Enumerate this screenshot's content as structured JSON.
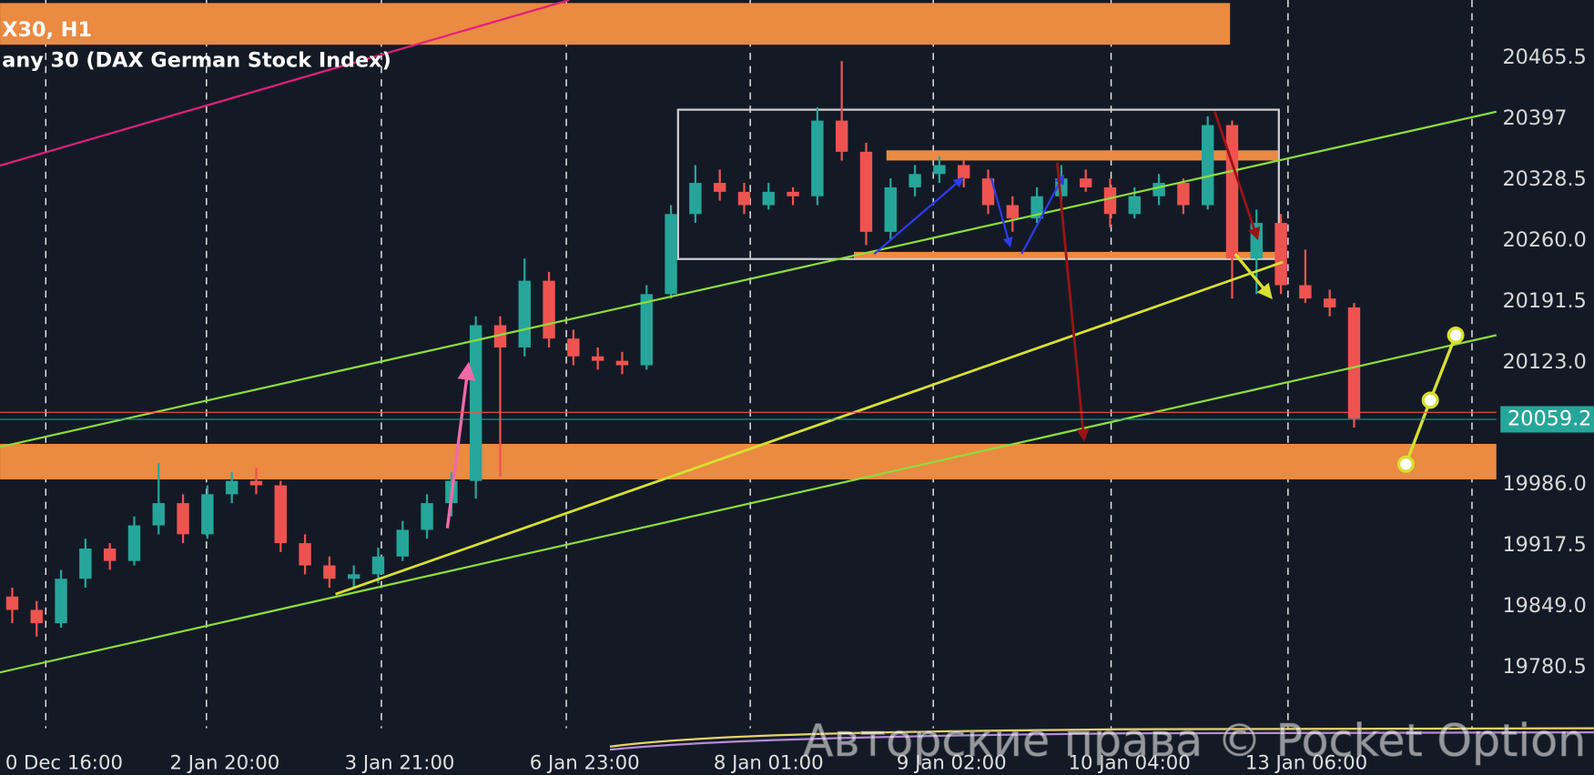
{
  "header": {
    "symbol": "X30, H1",
    "name": "any 30 (DAX German Stock Index)"
  },
  "watermark": "Авторские права © Pocket Option",
  "chart_data": {
    "type": "candlestick",
    "up_color": "#26a69a",
    "down_color": "#ef5350",
    "ylim": [
      19711.9,
      20530.6
    ],
    "yticks": [
      20465.5,
      20397.0,
      20328.5,
      {
        "value": 20260,
        "label": "20260.0"
      },
      20191.5,
      {
        "value": 20123,
        "label": "20123.0"
      },
      {
        "value": 19986,
        "label": "19986.0"
      },
      19917.5,
      {
        "value": 19849,
        "label": "19849.0"
      },
      19780.5
    ],
    "xlim": [
      -0.5,
      64.83
    ],
    "xticks": [
      {
        "value": 1.375,
        "label": "0 Dec 16:00"
      },
      {
        "value": 7.96,
        "label": "2 Jan 20:00"
      },
      {
        "value": 15.13,
        "label": "3 Jan 21:00"
      },
      {
        "value": 22.71,
        "label": "6 Jan 23:00"
      },
      {
        "value": 30.25,
        "label": "8 Jan 01:00"
      },
      {
        "value": 37.75,
        "label": "9 Jan 02:00"
      },
      {
        "value": 45.04,
        "label": "10 Jan 04:00"
      },
      {
        "value": 52.29,
        "label": "13 Jan 06:00"
      }
    ],
    "last_price": 20059.2,
    "ohlc": [
      [
        19860,
        19870,
        19830,
        19845
      ],
      [
        19845,
        19855,
        19815,
        19830
      ],
      [
        19830,
        19890,
        19825,
        19880
      ],
      [
        19880,
        19925,
        19870,
        19914
      ],
      [
        19914,
        19920,
        19890,
        19900
      ],
      [
        19900,
        19950,
        19895,
        19940
      ],
      [
        19940,
        20010,
        19930,
        19965
      ],
      [
        19965,
        19975,
        19920,
        19930
      ],
      [
        19930,
        19985,
        19925,
        19975
      ],
      [
        19975,
        20000,
        19965,
        19990
      ],
      [
        19990,
        20005,
        19975,
        19985
      ],
      [
        19985,
        19990,
        19910,
        19920
      ],
      [
        19920,
        19930,
        19885,
        19895
      ],
      [
        19895,
        19905,
        19870,
        19880
      ],
      [
        19880,
        19895,
        19870,
        19885
      ],
      [
        19885,
        19915,
        19875,
        19905
      ],
      [
        19905,
        19945,
        19900,
        19935
      ],
      [
        19935,
        19975,
        19925,
        19965
      ],
      [
        19965,
        20000,
        19950,
        19990
      ],
      [
        19990,
        20175,
        19970,
        20165
      ],
      [
        20165,
        20175,
        19995,
        20140
      ],
      [
        20140,
        20240,
        20130,
        20215
      ],
      [
        20215,
        20225,
        20140,
        20150
      ],
      [
        20150,
        20160,
        20120,
        20130
      ],
      [
        20130,
        20140,
        20115,
        20125
      ],
      [
        20125,
        20135,
        20110,
        20120
      ],
      [
        20120,
        20210,
        20115,
        20200
      ],
      [
        20200,
        20300,
        20195,
        20290
      ],
      [
        20290,
        20345,
        20280,
        20325
      ],
      [
        20325,
        20340,
        20305,
        20315
      ],
      [
        20315,
        20325,
        20290,
        20300
      ],
      [
        20300,
        20325,
        20295,
        20315
      ],
      [
        20315,
        20320,
        20300,
        20310
      ],
      [
        20310,
        20410,
        20300,
        20395
      ],
      [
        20395,
        20462,
        20350,
        20360
      ],
      [
        20360,
        20370,
        20255,
        20270
      ],
      [
        20270,
        20330,
        20260,
        20320
      ],
      [
        20320,
        20345,
        20310,
        20335
      ],
      [
        20335,
        20355,
        20325,
        20345
      ],
      [
        20345,
        20350,
        20320,
        20330
      ],
      [
        20330,
        20340,
        20290,
        20300
      ],
      [
        20300,
        20310,
        20270,
        20285
      ],
      [
        20285,
        20320,
        20280,
        20310
      ],
      [
        20310,
        20345,
        20300,
        20330
      ],
      [
        20330,
        20340,
        20315,
        20320
      ],
      [
        20320,
        20330,
        20275,
        20290
      ],
      [
        20290,
        20320,
        20285,
        20310
      ],
      [
        20310,
        20335,
        20300,
        20325
      ],
      [
        20325,
        20330,
        20290,
        20300
      ],
      [
        20300,
        20400,
        20295,
        20390
      ],
      [
        20390,
        20395,
        20195,
        20240
      ],
      [
        20240,
        20295,
        20200,
        20280
      ],
      [
        20280,
        20290,
        20200,
        20210
      ],
      [
        20210,
        20250,
        20190,
        20195
      ],
      [
        20195,
        20205,
        20175,
        20185
      ],
      [
        20185,
        20190,
        20050,
        20060
      ]
    ]
  }
}
